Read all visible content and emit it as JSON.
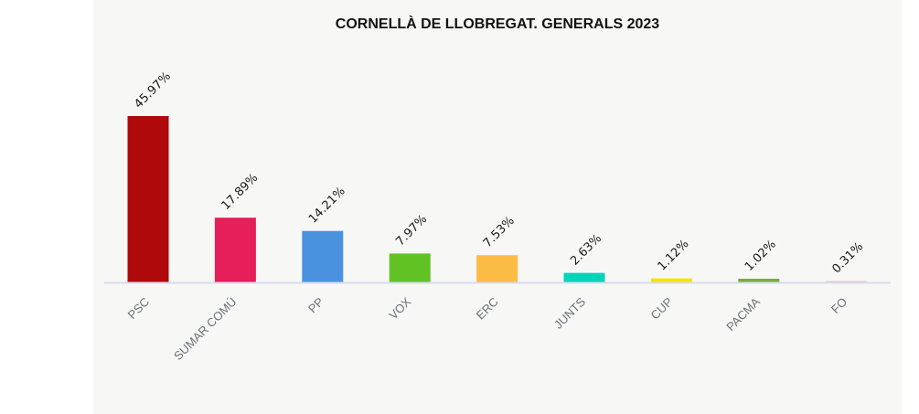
{
  "chart_data": {
    "type": "bar",
    "title": "CORNELLÀ DE LLOBREGAT. GENERALS 2023",
    "xlabel": "",
    "ylabel": "",
    "categories": [
      "PSC",
      "SUMAR COMÚ",
      "PP",
      "VOX",
      "ERC",
      "JUNTS",
      "CUP",
      "PACMA",
      "FO"
    ],
    "values": [
      45.97,
      17.89,
      14.21,
      7.97,
      7.53,
      2.63,
      1.12,
      1.02,
      0.31
    ],
    "data_labels": [
      "45.97%",
      "17.89%",
      "14.21%",
      "7.97%",
      "7.53%",
      "2.63%",
      "1.12%",
      "1.02%",
      "0.31%"
    ],
    "colors": [
      "#b0090b",
      "#e61e5a",
      "#4a92e0",
      "#62c224",
      "#fbbb44",
      "#00d4b8",
      "#f5e400",
      "#7daa3e",
      "#e6c5c8"
    ],
    "ylim": [
      0,
      50
    ],
    "grid": false,
    "legend": "none",
    "unit": "%"
  },
  "colors": {
    "panel_background": "#f7f7f6",
    "axis_line": "#d7dcef"
  }
}
